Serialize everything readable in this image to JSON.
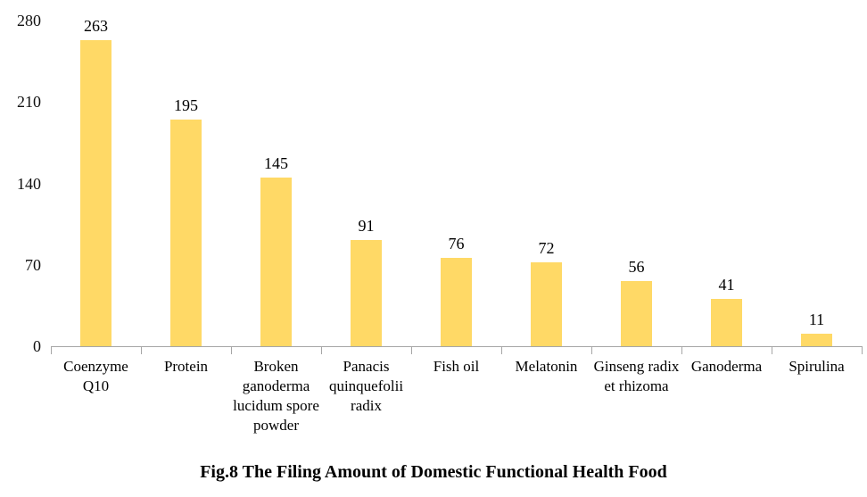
{
  "chart_data": {
    "type": "bar",
    "title": "Fig.8 The Filing Amount of Domestic Functional Health Food",
    "categories": [
      "Coenzyme Q10",
      "Protein",
      "Broken ganoderma lucidum spore powder",
      "Panacis quinquefolii radix",
      "Fish oil",
      "Melatonin",
      "Ginseng radix et rhizoma",
      "Ganoderma",
      "Spirulina"
    ],
    "values": [
      263,
      195,
      145,
      91,
      76,
      72,
      56,
      41,
      11
    ],
    "data_labels_shown": true,
    "xlabel": "",
    "ylabel": "",
    "ylim": [
      0,
      280
    ],
    "yticks": [
      0,
      70,
      140,
      210,
      280
    ],
    "grid": false,
    "legend": "none",
    "bar_color": "#FFD966",
    "axis_color": "#a6a6a6"
  }
}
